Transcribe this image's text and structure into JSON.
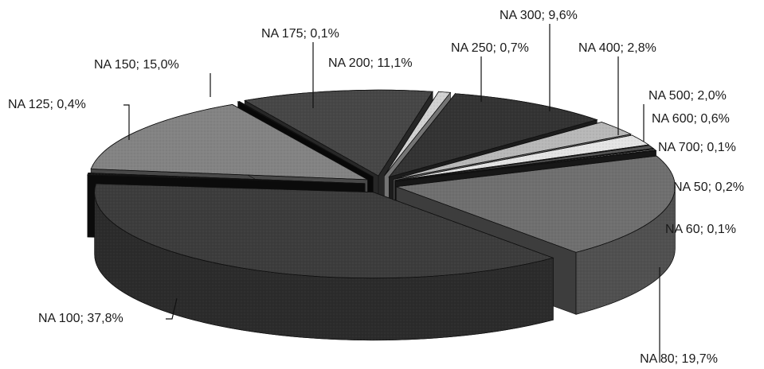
{
  "chart_data": {
    "type": "pie",
    "style": "3d-exploded",
    "slices": [
      {
        "label": "NA 50; 0,2%",
        "name": "NA 50",
        "value": 0.2,
        "color": "#9a9a9a"
      },
      {
        "label": "NA 60; 0,1%",
        "name": "NA 60",
        "value": 0.1,
        "color": "#2a2a2a"
      },
      {
        "label": "NA 80; 19,7%",
        "name": "NA 80",
        "value": 19.7,
        "color": "#6f6f6f"
      },
      {
        "label": "NA 100; 37,8%",
        "name": "NA 100",
        "value": 37.8,
        "color": "#3c3c3c"
      },
      {
        "label": "NA 125; 0,4%",
        "name": "NA 125",
        "value": 0.4,
        "color": "#141414"
      },
      {
        "label": "NA 150; 15,0%",
        "name": "NA 150",
        "value": 15.0,
        "color": "#838383"
      },
      {
        "label": "NA 175; 0,1%",
        "name": "NA 175",
        "value": 0.1,
        "color": "#0f0f0f"
      },
      {
        "label": "NA 200; 11,1%",
        "name": "NA 200",
        "value": 11.1,
        "color": "#464646"
      },
      {
        "label": "NA 250; 0,7%",
        "name": "NA 250",
        "value": 0.7,
        "color": "#d2d2d2"
      },
      {
        "label": "NA 300; 9,6%",
        "name": "NA 300",
        "value": 9.6,
        "color": "#333333"
      },
      {
        "label": "NA 400; 2,8%",
        "name": "NA 400",
        "value": 2.8,
        "color": "#b8b8b8"
      },
      {
        "label": "NA 500; 2,0%",
        "name": "NA 500",
        "value": 2.0,
        "color": "#e4e4e4"
      },
      {
        "label": "NA 600; 0,6%",
        "name": "NA 600",
        "value": 0.6,
        "color": "#555555"
      },
      {
        "label": "NA 700; 0,1%",
        "name": "NA 700",
        "value": 0.1,
        "color": "#1c1c1c"
      }
    ]
  }
}
